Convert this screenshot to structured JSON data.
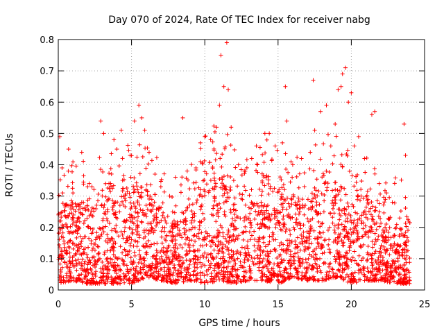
{
  "chart_data": {
    "type": "scatter",
    "title": "Day 070 of 2024, Rate Of TEC Index for receiver nabg",
    "xlabel": "GPS time / hours",
    "ylabel": "ROTI / TECUs",
    "xlim": [
      0,
      25
    ],
    "ylim": [
      0,
      0.8
    ],
    "xticks": [
      "0",
      "5",
      "10",
      "15",
      "20",
      "25"
    ],
    "yticks": [
      "0",
      "0.1",
      "0.2",
      "0.3",
      "0.4",
      "0.5",
      "0.6",
      "0.7",
      "0.8"
    ],
    "grid": true,
    "marker": "plus",
    "color": "#ff0000",
    "data_extent": [
      0,
      24
    ],
    "points": [
      [
        0.1,
        0.49
      ],
      [
        0.3,
        0.31
      ],
      [
        0.7,
        0.45
      ],
      [
        1.0,
        0.31
      ],
      [
        1.6,
        0.44
      ],
      [
        2.0,
        0.33
      ],
      [
        2.3,
        0.33
      ],
      [
        2.9,
        0.54
      ],
      [
        3.1,
        0.5
      ],
      [
        3.8,
        0.48
      ],
      [
        4.0,
        0.45
      ],
      [
        4.3,
        0.51
      ],
      [
        4.9,
        0.43
      ],
      [
        5.2,
        0.54
      ],
      [
        5.5,
        0.59
      ],
      [
        5.7,
        0.55
      ],
      [
        5.9,
        0.51
      ],
      [
        6.2,
        0.44
      ],
      [
        6.6,
        0.37
      ],
      [
        7.0,
        0.33
      ],
      [
        7.6,
        0.3
      ],
      [
        8.0,
        0.36
      ],
      [
        8.5,
        0.55
      ],
      [
        8.8,
        0.38
      ],
      [
        9.4,
        0.39
      ],
      [
        9.7,
        0.47
      ],
      [
        10.0,
        0.49
      ],
      [
        10.4,
        0.48
      ],
      [
        10.8,
        0.52
      ],
      [
        11.0,
        0.59
      ],
      [
        11.1,
        0.75
      ],
      [
        11.3,
        0.65
      ],
      [
        11.5,
        0.79
      ],
      [
        11.6,
        0.64
      ],
      [
        11.8,
        0.52
      ],
      [
        12.3,
        0.4
      ],
      [
        12.7,
        0.38
      ],
      [
        13.2,
        0.42
      ],
      [
        13.6,
        0.4
      ],
      [
        14.1,
        0.5
      ],
      [
        14.4,
        0.5
      ],
      [
        14.8,
        0.46
      ],
      [
        15.3,
        0.47
      ],
      [
        15.5,
        0.65
      ],
      [
        15.6,
        0.54
      ],
      [
        16.0,
        0.4
      ],
      [
        16.6,
        0.42
      ],
      [
        17.2,
        0.44
      ],
      [
        17.4,
        0.67
      ],
      [
        17.5,
        0.51
      ],
      [
        17.9,
        0.57
      ],
      [
        18.3,
        0.59
      ],
      [
        18.6,
        0.46
      ],
      [
        18.9,
        0.53
      ],
      [
        19.1,
        0.64
      ],
      [
        19.3,
        0.65
      ],
      [
        19.4,
        0.69
      ],
      [
        19.6,
        0.71
      ],
      [
        19.8,
        0.6
      ],
      [
        20.0,
        0.63
      ],
      [
        20.2,
        0.46
      ],
      [
        20.5,
        0.49
      ],
      [
        20.9,
        0.42
      ],
      [
        21.4,
        0.56
      ],
      [
        21.6,
        0.57
      ],
      [
        21.9,
        0.34
      ],
      [
        22.4,
        0.31
      ],
      [
        22.8,
        0.28
      ],
      [
        23.3,
        0.23
      ],
      [
        23.6,
        0.53
      ],
      [
        23.7,
        0.43
      ],
      [
        23.9,
        0.22
      ]
    ],
    "density_envelope": {
      "x": [
        0,
        1,
        2,
        3,
        4,
        5,
        6,
        7,
        8,
        9,
        10,
        11,
        12,
        13,
        14,
        15,
        16,
        17,
        18,
        19,
        20,
        21,
        22,
        23,
        24
      ],
      "upper": [
        0.28,
        0.27,
        0.26,
        0.3,
        0.28,
        0.32,
        0.32,
        0.25,
        0.2,
        0.24,
        0.35,
        0.38,
        0.3,
        0.28,
        0.34,
        0.3,
        0.28,
        0.26,
        0.34,
        0.34,
        0.3,
        0.3,
        0.22,
        0.2,
        0.18
      ],
      "lower": [
        0.02,
        0.03,
        0.02,
        0.02,
        0.02,
        0.02,
        0.04,
        0.03,
        0.02,
        0.03,
        0.02,
        0.03,
        0.02,
        0.03,
        0.03,
        0.02,
        0.04,
        0.03,
        0.03,
        0.04,
        0.02,
        0.03,
        0.03,
        0.02,
        0.02
      ]
    }
  }
}
